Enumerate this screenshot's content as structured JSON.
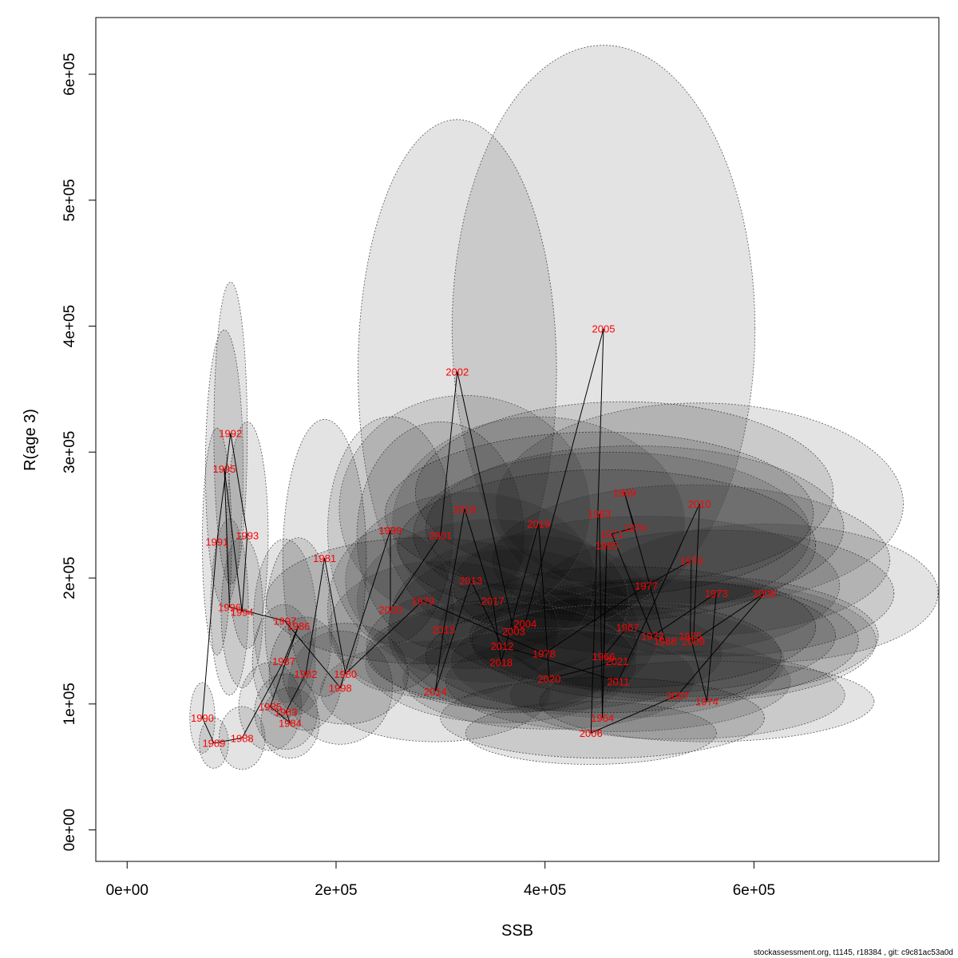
{
  "chart_data": {
    "type": "scatter",
    "title": "",
    "xlabel": "SSB",
    "ylabel": "R(age 3)",
    "xlim": [
      -30000,
      777000
    ],
    "ylim": [
      -25000,
      645000
    ],
    "x_ticks": [
      0,
      200000,
      400000,
      600000
    ],
    "x_tick_labels": [
      "0e+00",
      "2e+05",
      "4e+05",
      "6e+05"
    ],
    "y_ticks": [
      0,
      100000,
      200000,
      300000,
      400000,
      500000,
      600000
    ],
    "y_tick_labels": [
      "0e+00",
      "1e+05",
      "2e+05",
      "3e+05",
      "4e+05",
      "5e+05",
      "6e+05"
    ],
    "grid": false,
    "ellipse_fill": "#000000",
    "ellipse_opacity": 0.11,
    "ellipse_stroke": "#555555",
    "line_color": "#000000",
    "label_color": "#ff0000",
    "points": [
      {
        "year": "1963",
        "ssb": 452000,
        "rec": 251000,
        "sd_ssb": 205000,
        "sd_rec": 65000
      },
      {
        "year": "1964",
        "ssb": 455000,
        "rec": 89000,
        "sd_ssb": 155000,
        "sd_rec": 32000
      },
      {
        "year": "1965",
        "ssb": 459000,
        "rec": 226000,
        "sd_ssb": 200000,
        "sd_rec": 60000
      },
      {
        "year": "1966",
        "ssb": 456000,
        "rec": 138000,
        "sd_ssb": 170000,
        "sd_rec": 45000
      },
      {
        "year": "1967",
        "ssb": 479000,
        "rec": 161000,
        "sd_ssb": 180000,
        "sd_rec": 48000
      },
      {
        "year": "1968",
        "ssb": 515000,
        "rec": 150000,
        "sd_ssb": 185000,
        "sd_rec": 48000
      },
      {
        "year": "1969",
        "ssb": 476000,
        "rec": 268000,
        "sd_ssb": 200000,
        "sd_rec": 72000
      },
      {
        "year": "1970",
        "ssb": 486000,
        "rec": 240000,
        "sd_ssb": 200000,
        "sd_rec": 65000
      },
      {
        "year": "1971",
        "ssb": 464000,
        "rec": 235000,
        "sd_ssb": 190000,
        "sd_rec": 65000
      },
      {
        "year": "1972",
        "ssb": 503000,
        "rec": 154000,
        "sd_ssb": 175000,
        "sd_rec": 45000
      },
      {
        "year": "1973",
        "ssb": 564000,
        "rec": 188000,
        "sd_ssb": 170000,
        "sd_rec": 50000
      },
      {
        "year": "1974",
        "ssb": 555000,
        "rec": 102000,
        "sd_ssb": 160000,
        "sd_rec": 32000
      },
      {
        "year": "1975",
        "ssb": 539000,
        "rec": 154000,
        "sd_ssb": 180000,
        "sd_rec": 48000
      },
      {
        "year": "1976",
        "ssb": 540000,
        "rec": 214000,
        "sd_ssb": 190000,
        "sd_rec": 60000
      },
      {
        "year": "1977",
        "ssb": 497000,
        "rec": 194000,
        "sd_ssb": 185000,
        "sd_rec": 55000
      },
      {
        "year": "1978",
        "ssb": 399000,
        "rec": 140000,
        "sd_ssb": 170000,
        "sd_rec": 45000
      },
      {
        "year": "1979",
        "ssb": 283000,
        "rec": 182000,
        "sd_ssb": 150000,
        "sd_rec": 50000
      },
      {
        "year": "1980",
        "ssb": 209000,
        "rec": 124000,
        "sd_ssb": 60000,
        "sd_rec": 40000
      },
      {
        "year": "1981",
        "ssb": 189000,
        "rec": 216000,
        "sd_ssb": 40000,
        "sd_rec": 110000
      },
      {
        "year": "1982",
        "ssb": 171000,
        "rec": 124000,
        "sd_ssb": 35000,
        "sd_rec": 45000
      },
      {
        "year": "1983",
        "ssb": 152000,
        "rec": 94000,
        "sd_ssb": 30000,
        "sd_rec": 30000
      },
      {
        "year": "1984",
        "ssb": 156000,
        "rec": 85000,
        "sd_ssb": 28000,
        "sd_rec": 28000
      },
      {
        "year": "1985",
        "ssb": 137000,
        "rec": 98000,
        "sd_ssb": 30000,
        "sd_rec": 35000
      },
      {
        "year": "1986",
        "ssb": 164000,
        "rec": 162000,
        "sd_ssb": 32000,
        "sd_rec": 70000
      },
      {
        "year": "1987",
        "ssb": 150000,
        "rec": 134000,
        "sd_ssb": 30000,
        "sd_rec": 45000
      },
      {
        "year": "1988",
        "ssb": 110000,
        "rec": 73000,
        "sd_ssb": 22000,
        "sd_rec": 25000
      },
      {
        "year": "1989",
        "ssb": 83000,
        "rec": 69000,
        "sd_ssb": 14000,
        "sd_rec": 20000
      },
      {
        "year": "1990",
        "ssb": 72000,
        "rec": 89000,
        "sd_ssb": 12000,
        "sd_rec": 28000
      },
      {
        "year": "1991",
        "ssb": 86000,
        "rec": 229000,
        "sd_ssb": 14000,
        "sd_rec": 90000
      },
      {
        "year": "1992",
        "ssb": 99000,
        "rec": 315000,
        "sd_ssb": 16000,
        "sd_rec": 120000
      },
      {
        "year": "1993",
        "ssb": 115000,
        "rec": 234000,
        "sd_ssb": 20000,
        "sd_rec": 90000
      },
      {
        "year": "1994",
        "ssb": 110000,
        "rec": 173000,
        "sd_ssb": 20000,
        "sd_rec": 60000
      },
      {
        "year": "1995",
        "ssb": 93000,
        "rec": 287000,
        "sd_ssb": 18000,
        "sd_rec": 110000
      },
      {
        "year": "1996",
        "ssb": 98000,
        "rec": 177000,
        "sd_ssb": 18000,
        "sd_rec": 70000
      },
      {
        "year": "1997",
        "ssb": 151000,
        "rec": 166000,
        "sd_ssb": 30000,
        "sd_rec": 65000
      },
      {
        "year": "1998",
        "ssb": 204000,
        "rec": 113000,
        "sd_ssb": 50000,
        "sd_rec": 45000
      },
      {
        "year": "1999",
        "ssb": 252000,
        "rec": 238000,
        "sd_ssb": 60000,
        "sd_rec": 90000
      },
      {
        "year": "2000",
        "ssb": 252000,
        "rec": 175000,
        "sd_ssb": 60000,
        "sd_rec": 65000
      },
      {
        "year": "2001",
        "ssb": 300000,
        "rec": 234000,
        "sd_ssb": 80000,
        "sd_rec": 90000
      },
      {
        "year": "2002",
        "ssb": 316000,
        "rec": 364000,
        "sd_ssb": 95000,
        "sd_rec": 200000
      },
      {
        "year": "2003",
        "ssb": 370000,
        "rec": 158000,
        "sd_ssb": 120000,
        "sd_rec": 65000
      },
      {
        "year": "2004",
        "ssb": 381000,
        "rec": 164000,
        "sd_ssb": 130000,
        "sd_rec": 70000
      },
      {
        "year": "2005",
        "ssb": 456000,
        "rec": 398000,
        "sd_ssb": 145000,
        "sd_rec": 225000
      },
      {
        "year": "2006",
        "ssb": 444000,
        "rec": 77000,
        "sd_ssb": 120000,
        "sd_rec": 25000
      },
      {
        "year": "2007",
        "ssb": 527000,
        "rec": 107000,
        "sd_ssb": 160000,
        "sd_rec": 35000
      },
      {
        "year": "2008",
        "ssb": 610000,
        "rec": 188000,
        "sd_ssb": 175000,
        "sd_rec": 55000
      },
      {
        "year": "2009",
        "ssb": 542000,
        "rec": 150000,
        "sd_ssb": 175000,
        "sd_rec": 48000
      },
      {
        "year": "2010",
        "ssb": 548000,
        "rec": 259000,
        "sd_ssb": 195000,
        "sd_rec": 80000
      },
      {
        "year": "2011",
        "ssb": 470000,
        "rec": 118000,
        "sd_ssb": 165000,
        "sd_rec": 40000
      },
      {
        "year": "2012",
        "ssb": 359000,
        "rec": 146000,
        "sd_ssb": 130000,
        "sd_rec": 50000
      },
      {
        "year": "2013",
        "ssb": 329000,
        "rec": 198000,
        "sd_ssb": 120000,
        "sd_rec": 70000
      },
      {
        "year": "2014",
        "ssb": 295000,
        "rec": 110000,
        "sd_ssb": 110000,
        "sd_rec": 40000
      },
      {
        "year": "2015",
        "ssb": 303000,
        "rec": 159000,
        "sd_ssb": 110000,
        "sd_rec": 55000
      },
      {
        "year": "2016",
        "ssb": 323000,
        "rec": 255000,
        "sd_ssb": 120000,
        "sd_rec": 90000
      },
      {
        "year": "2017",
        "ssb": 350000,
        "rec": 182000,
        "sd_ssb": 130000,
        "sd_rec": 65000
      },
      {
        "year": "2018",
        "ssb": 358000,
        "rec": 133000,
        "sd_ssb": 130000,
        "sd_rec": 48000
      },
      {
        "year": "2019",
        "ssb": 394000,
        "rec": 243000,
        "sd_ssb": 140000,
        "sd_rec": 85000
      },
      {
        "year": "2020",
        "ssb": 404000,
        "rec": 120000,
        "sd_ssb": 140000,
        "sd_rec": 40000
      },
      {
        "year": "2021",
        "ssb": 469000,
        "rec": 134000,
        "sd_ssb": 160000,
        "sd_rec": 45000
      }
    ]
  },
  "footer": "stockassessment.org, t1145, r18384 , git: c9c81ac53a0d"
}
